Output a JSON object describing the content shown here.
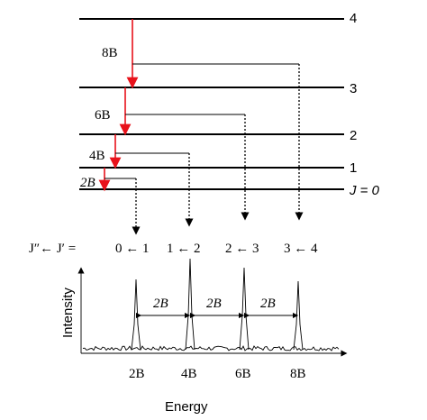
{
  "levels": [
    {
      "j": "4",
      "label": "4"
    },
    {
      "j": "3",
      "label": "3"
    },
    {
      "j": "2",
      "label": "2"
    },
    {
      "j": "1",
      "label": "1"
    },
    {
      "j": "0",
      "label": "J = 0"
    }
  ],
  "transition_labels": [
    "8B",
    "6B",
    "4B",
    "2B"
  ],
  "transitions_header": {
    "prefix": "J″← J′ =",
    "items": [
      "0 ← 1",
      "1 ← 2",
      "2 ← 3",
      "3 ← 4"
    ]
  },
  "spectrum": {
    "ylabel": "Intensity",
    "xlabel": "Energy",
    "spacing_labels": [
      "2B",
      "2B",
      "2B"
    ],
    "tick_labels": [
      "2B",
      "4B",
      "6B",
      "8B"
    ],
    "peak_positions_B": [
      2,
      4,
      6,
      8
    ],
    "peak_spacing_B": 2
  },
  "colors": {
    "transition_arrow": "#e8121b",
    "lines": "#000000"
  }
}
